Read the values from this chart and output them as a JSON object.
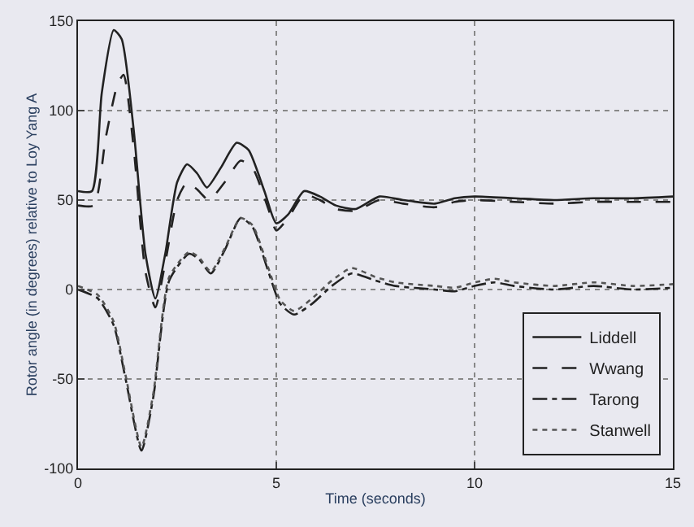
{
  "chart_data": {
    "type": "line",
    "xlabel": "Time (seconds)",
    "ylabel": "Rotor angle (in degrees) relative to Loy Yang A",
    "xlim": [
      0,
      15
    ],
    "ylim": [
      -100,
      150
    ],
    "xticks": [
      0,
      5,
      10,
      15
    ],
    "yticks": [
      -100,
      -50,
      0,
      50,
      100,
      150
    ],
    "grid": true,
    "legend": "bottom right",
    "marker": "none",
    "series": [
      {
        "name": "Liddell",
        "color": "#222222",
        "line_style": "solid",
        "x": [
          0,
          0.35,
          0.6,
          0.9,
          1.1,
          1.4,
          1.7,
          1.95,
          2.2,
          2.5,
          2.75,
          3.0,
          3.25,
          3.6,
          4.0,
          4.3,
          4.7,
          5.0,
          5.3,
          5.7,
          6.1,
          6.5,
          7.0,
          7.6,
          8.2,
          9.0,
          9.5,
          10.0,
          11.0,
          12.0,
          13.0,
          14.0,
          15.0
        ],
        "values": [
          55,
          55,
          110,
          145,
          140,
          90,
          20,
          -5,
          20,
          60,
          70,
          65,
          57,
          68,
          82,
          78,
          55,
          37,
          42,
          55,
          52,
          47,
          45,
          52,
          50,
          48,
          51,
          52,
          51,
          50,
          51,
          51,
          52
        ]
      },
      {
        "name": "Wwang",
        "color": "#222222",
        "line_style": "dashed",
        "x": [
          0,
          0.4,
          0.7,
          1.0,
          1.15,
          1.4,
          1.7,
          1.95,
          2.2,
          2.5,
          2.75,
          3.0,
          3.3,
          3.7,
          4.1,
          4.4,
          4.8,
          5.0,
          5.3,
          5.7,
          6.1,
          6.5,
          7.0,
          7.6,
          8.2,
          9.0,
          9.5,
          10.0,
          11.0,
          12.0,
          13.0,
          14.0,
          15.0
        ],
        "values": [
          47,
          47,
          85,
          115,
          120,
          80,
          10,
          -10,
          15,
          50,
          60,
          56,
          50,
          60,
          72,
          68,
          45,
          33,
          40,
          53,
          50,
          45,
          44,
          50,
          48,
          46,
          49,
          50,
          49,
          48,
          49,
          49,
          49
        ]
      },
      {
        "name": "Tarong",
        "color": "#222222",
        "line_style": "dashdot",
        "x": [
          0,
          0.5,
          0.9,
          1.2,
          1.6,
          1.9,
          2.3,
          2.8,
          3.05,
          3.35,
          3.7,
          4.1,
          4.4,
          4.8,
          5.1,
          5.45,
          5.9,
          6.4,
          6.9,
          7.5,
          8.0,
          9.0,
          9.5,
          10.0,
          10.5,
          11.0,
          12.0,
          13.0,
          14.0,
          15.0
        ],
        "values": [
          0,
          -5,
          -20,
          -50,
          -90,
          -60,
          5,
          20,
          17,
          9,
          22,
          40,
          35,
          10,
          -8,
          -14,
          -8,
          2,
          9,
          5,
          2,
          0,
          -1,
          2,
          4,
          2,
          0,
          2,
          0,
          1
        ]
      },
      {
        "name": "Stanwell",
        "color": "#555555",
        "line_style": "dotted",
        "x": [
          0,
          0.5,
          0.9,
          1.2,
          1.6,
          1.9,
          2.3,
          2.8,
          3.05,
          3.35,
          3.7,
          4.1,
          4.4,
          4.8,
          5.1,
          5.45,
          5.9,
          6.4,
          6.9,
          7.5,
          8.0,
          9.0,
          9.5,
          10.0,
          10.5,
          11.0,
          12.0,
          13.0,
          14.0,
          15.0
        ],
        "values": [
          2,
          -3,
          -18,
          -48,
          -88,
          -58,
          7,
          21,
          18,
          10,
          23,
          40,
          36,
          12,
          -6,
          -12,
          -5,
          5,
          12,
          7,
          4,
          2,
          1,
          4,
          6,
          4,
          2,
          4,
          2,
          3
        ]
      }
    ]
  }
}
